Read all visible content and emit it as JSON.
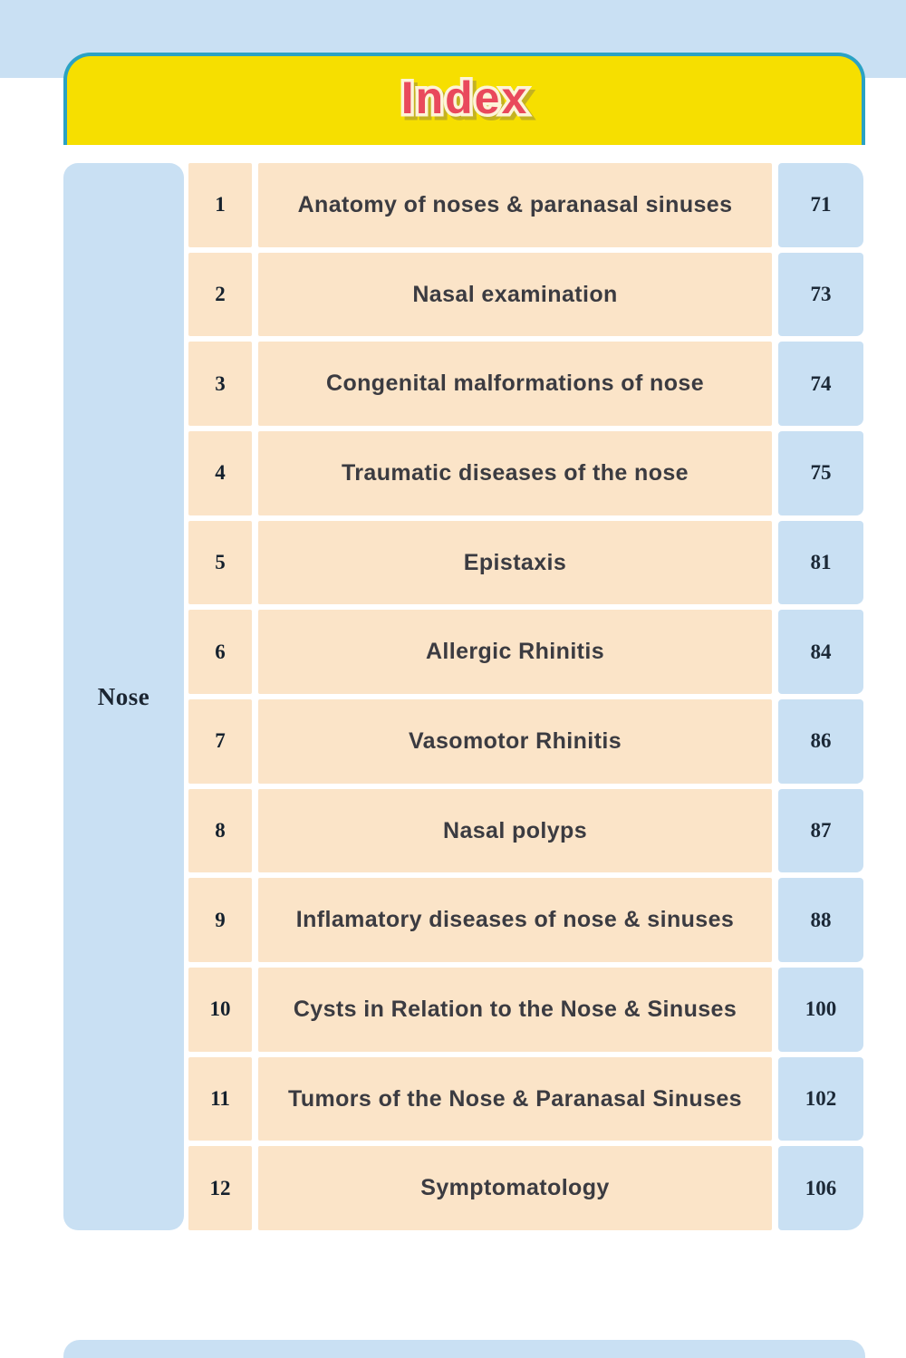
{
  "colors": {
    "blue": "#c9e0f3",
    "peach": "#fbe4c8",
    "yellow": "#f6df00",
    "teal": "#2ba2c4",
    "red": "#e9495c"
  },
  "header": {
    "title": "Index"
  },
  "index_table": {
    "section_label": "Nose",
    "rows": [
      {
        "num": "1",
        "title": "Anatomy of noses & paranasal sinuses",
        "page": "71"
      },
      {
        "num": "2",
        "title": "Nasal examination",
        "page": "73"
      },
      {
        "num": "3",
        "title": "Congenital malformations of nose",
        "page": "74"
      },
      {
        "num": "4",
        "title": "Traumatic diseases of the nose",
        "page": "75"
      },
      {
        "num": "5",
        "title": "Epistaxis",
        "page": "81"
      },
      {
        "num": "6",
        "title": "Allergic Rhinitis",
        "page": "84"
      },
      {
        "num": "7",
        "title": "Vasomotor Rhinitis",
        "page": "86"
      },
      {
        "num": "8",
        "title": "Nasal polyps",
        "page": "87"
      },
      {
        "num": "9",
        "title": "Inflamatory diseases of nose & sinuses",
        "page": "88"
      },
      {
        "num": "10",
        "title": "Cysts in Relation to the Nose & Sinuses",
        "page": "100"
      },
      {
        "num": "11",
        "title": "Tumors of the Nose & Paranasal Sinuses",
        "page": "102"
      },
      {
        "num": "12",
        "title": "Symptomatology",
        "page": "106"
      }
    ]
  }
}
